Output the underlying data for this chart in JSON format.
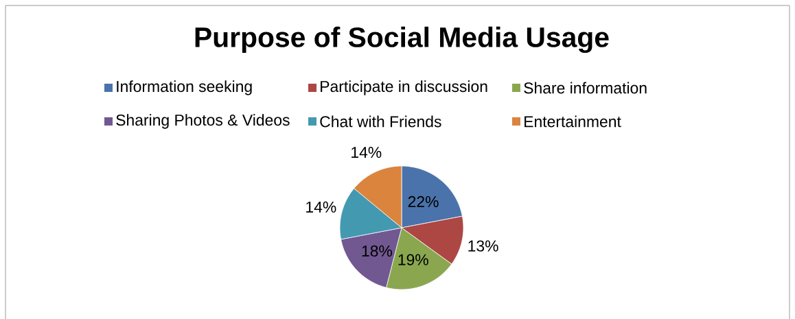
{
  "chart_data": {
    "type": "pie",
    "title": "Purpose of Social Media Usage",
    "categories": [
      "Information seeking",
      "Participate in discussion",
      "Share information",
      "Sharing Photos & Videos",
      "Chat with Friends",
      "Entertainment"
    ],
    "values": [
      22,
      13,
      19,
      18,
      14,
      14
    ],
    "colors": [
      "#4a73ab",
      "#ac4744",
      "#8aa74f",
      "#725891",
      "#4399b0",
      "#da843e"
    ],
    "value_labels": [
      "22%",
      "13%",
      "19%",
      "18%",
      "14%",
      "14%"
    ],
    "legend": "top"
  }
}
